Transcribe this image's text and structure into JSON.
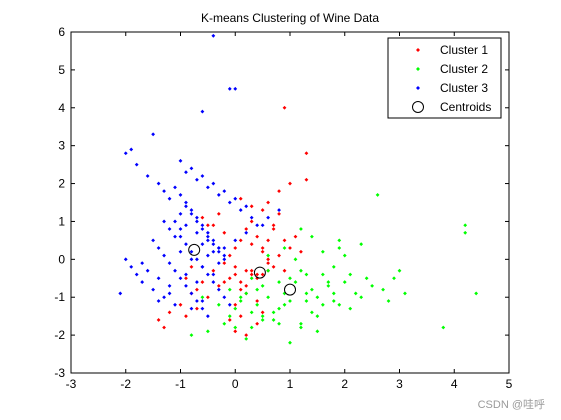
{
  "watermark": "CSDN @哇呼",
  "chart_data": {
    "type": "scatter",
    "title": "K-means Clustering of Wine Data",
    "xlabel": "",
    "ylabel": "",
    "xlim": [
      -3,
      5
    ],
    "ylim": [
      -3,
      6
    ],
    "xticks": [
      "-3",
      "-2",
      "-1",
      "0",
      "1",
      "2",
      "3",
      "4",
      "5"
    ],
    "yticks": [
      "-3",
      "-2",
      "-1",
      "0",
      "1",
      "2",
      "3",
      "4",
      "5",
      "6"
    ],
    "grid": false,
    "legend_position": "top-right",
    "colors": {
      "cluster1": "#ff0000",
      "cluster2": "#00ff00",
      "cluster3": "#0000ff",
      "centroid": "#000000"
    },
    "series": [
      {
        "name": "Cluster 1",
        "marker": "dot",
        "x": [
          0.9,
          1.3,
          1.3,
          1.0,
          0.8,
          0.6,
          0.5,
          0.3,
          0.2,
          0.1,
          0.0,
          -0.1,
          -0.2,
          -0.4,
          -0.6,
          -0.8,
          -1.0,
          -1.4,
          -1.3,
          -1.2,
          0.4,
          0.2,
          0.0,
          -0.1,
          -0.3,
          -0.5,
          -0.7,
          0.3,
          0.4,
          0.5,
          0.6,
          0.7,
          0.1,
          0.2,
          0.4,
          0.5,
          -0.2,
          -0.4,
          -0.6,
          0.9,
          1.0,
          0.8,
          0.6,
          0.3,
          0.1,
          -0.1,
          0.0,
          0.2,
          0.4,
          0.3,
          0.1,
          -0.3,
          -0.5,
          -0.9,
          0.7,
          0.8,
          0.5,
          0.3,
          0.0,
          -0.2,
          1.2,
          1.1,
          0.9,
          0.6,
          0.4,
          0.2,
          0.5,
          0.6,
          0.7,
          -0.7,
          -0.9,
          -0.8,
          0.0,
          0.1
        ],
        "y": [
          4.0,
          2.8,
          2.1,
          2.0,
          1.8,
          1.5,
          1.3,
          1.0,
          0.8,
          0.5,
          0.3,
          0.1,
          -0.1,
          -0.3,
          -0.6,
          -0.9,
          -1.2,
          -1.6,
          -1.8,
          -1.4,
          -0.4,
          -0.3,
          -0.2,
          -0.5,
          -0.7,
          -1.0,
          -1.3,
          0.4,
          0.6,
          0.2,
          0.0,
          -0.2,
          -0.6,
          -0.9,
          -1.1,
          -1.4,
          0.7,
          0.9,
          1.1,
          0.5,
          0.3,
          0.1,
          -0.1,
          -0.4,
          -0.8,
          -1.6,
          -1.9,
          -2.0,
          -1.7,
          1.4,
          1.6,
          1.2,
          0.9,
          -0.5,
          0.9,
          1.2,
          -0.4,
          -0.3,
          -0.4,
          -0.6,
          0.2,
          0.6,
          -0.3,
          -0.3,
          -0.5,
          -0.7,
          0.3,
          0.5,
          0.8,
          -0.8,
          -1.5,
          -0.2,
          -1.2,
          -1.5
        ]
      },
      {
        "name": "Cluster 2",
        "marker": "dot",
        "x": [
          2.6,
          4.2,
          4.2,
          4.4,
          3.8,
          3.1,
          2.9,
          2.8,
          2.5,
          2.3,
          2.1,
          2.0,
          1.9,
          1.8,
          1.7,
          1.6,
          1.5,
          1.4,
          1.3,
          1.2,
          1.1,
          1.0,
          0.9,
          0.8,
          0.7,
          0.6,
          0.5,
          0.4,
          0.3,
          0.2,
          0.1,
          0.0,
          -0.1,
          -0.2,
          -0.3,
          -0.5,
          -0.6,
          -0.8,
          2.0,
          1.8,
          1.6,
          1.4,
          1.2,
          1.0,
          0.8,
          0.6,
          0.4,
          2.2,
          2.4,
          1.9,
          1.7,
          1.5,
          1.3,
          1.1,
          0.9,
          0.7,
          0.5,
          0.3,
          0.1,
          -0.1,
          1.6,
          1.9,
          2.3,
          1.4,
          1.2,
          0.9,
          0.6,
          0.3,
          2.7,
          3.0,
          1.0,
          1.2,
          1.5,
          0.8,
          0.5,
          0.2,
          0.0,
          2.1,
          1.8,
          1.3
        ],
        "y": [
          1.7,
          0.9,
          0.7,
          -0.9,
          -1.8,
          -0.9,
          -0.5,
          -1.1,
          -0.7,
          -1.0,
          -0.4,
          0.1,
          0.3,
          -0.2,
          -0.6,
          -1.2,
          -1.5,
          -0.8,
          -1.1,
          -0.3,
          0.0,
          -0.5,
          -0.9,
          -1.3,
          -1.6,
          -1.0,
          -0.7,
          -1.2,
          -1.4,
          -0.9,
          -1.1,
          -1.3,
          -1.5,
          -1.7,
          -1.2,
          -1.9,
          -1.0,
          -2.0,
          -0.6,
          -0.9,
          -0.4,
          -1.4,
          -1.7,
          -1.1,
          -0.6,
          -0.3,
          -0.8,
          -0.9,
          -0.5,
          -1.2,
          -0.7,
          -1.0,
          -0.4,
          -0.6,
          -1.2,
          -1.4,
          -1.6,
          -1.8,
          -1.0,
          -0.8,
          0.2,
          0.5,
          0.4,
          0.6,
          0.8,
          0.3,
          0.1,
          -0.5,
          -0.8,
          -0.3,
          -2.2,
          -1.8,
          -1.9,
          -1.7,
          -1.5,
          -2.1,
          -1.8,
          -1.3,
          -1.1,
          -0.9
        ]
      },
      {
        "name": "Cluster 3",
        "marker": "dot",
        "x": [
          -0.4,
          -0.1,
          0.0,
          -0.6,
          -1.5,
          -1.9,
          -2.0,
          -2.1,
          -1.8,
          -1.6,
          -1.4,
          -1.3,
          -1.2,
          -1.1,
          -1.0,
          -0.9,
          -0.8,
          -0.7,
          -0.6,
          -0.5,
          -0.4,
          -0.3,
          -0.2,
          -1.0,
          -0.9,
          -0.8,
          -0.7,
          -0.6,
          -0.5,
          -0.4,
          -0.3,
          -0.2,
          -0.1,
          -1.2,
          -1.1,
          -1.0,
          -0.9,
          -0.8,
          -0.7,
          -0.6,
          -0.5,
          -0.4,
          -0.3,
          -1.5,
          -1.4,
          -1.3,
          -1.2,
          -1.1,
          -1.0,
          -0.9,
          -0.8,
          -0.7,
          -0.6,
          -0.5,
          -1.7,
          -1.6,
          -1.4,
          -1.2,
          -1.0,
          -0.8,
          -0.6,
          -0.4,
          -0.2,
          0.0,
          0.2,
          0.4,
          0.6,
          0.8,
          -1.3,
          -1.1,
          -0.9,
          -0.7,
          -0.5,
          -0.3,
          -2.0,
          -1.9,
          -1.8,
          -1.7,
          -1.5,
          -1.3,
          -1.1,
          -0.9,
          -0.7,
          -0.5,
          -0.3,
          -0.1,
          0.1,
          0.3,
          0.5,
          -1.0,
          -0.8,
          -0.6,
          -0.4,
          -0.2,
          0.0,
          0.2,
          -0.9,
          -0.7,
          -0.5,
          -0.3,
          -1.2,
          -0.8,
          -0.6,
          -1.4,
          -0.2,
          -0.4,
          -0.6,
          -1.0
        ],
        "y": [
          5.9,
          4.5,
          4.5,
          3.9,
          3.3,
          2.9,
          2.8,
          -0.9,
          2.5,
          2.2,
          2.0,
          1.8,
          1.6,
          1.9,
          1.7,
          1.5,
          1.3,
          1.1,
          0.9,
          0.7,
          0.5,
          0.3,
          0.1,
          0.6,
          0.4,
          0.2,
          0.0,
          -0.2,
          -0.4,
          -0.6,
          -0.8,
          -1.0,
          -1.2,
          0.8,
          1.0,
          1.2,
          1.4,
          1.2,
          1.0,
          0.8,
          0.6,
          0.4,
          0.2,
          0.5,
          0.3,
          0.1,
          -0.1,
          -0.3,
          -0.5,
          -0.7,
          -0.9,
          -1.1,
          -1.3,
          -1.5,
          -0.1,
          -0.3,
          -0.5,
          -0.7,
          0.2,
          0.0,
          -0.2,
          -0.4,
          0.3,
          0.5,
          0.7,
          0.9,
          1.1,
          1.3,
          1.0,
          0.6,
          0.9,
          0.7,
          0.5,
          0.3,
          0.0,
          -0.2,
          -0.4,
          -0.6,
          -0.8,
          -1.0,
          -1.2,
          2.3,
          2.1,
          1.9,
          1.7,
          1.5,
          1.3,
          1.1,
          0.9,
          2.6,
          2.4,
          2.2,
          2.0,
          1.8,
          1.6,
          1.4,
          -0.4,
          -0.6,
          0.1,
          -0.1,
          -0.9,
          -1.3,
          -1.1,
          -1.1,
          0.0,
          0.2,
          0.4,
          0.8
        ]
      },
      {
        "name": "Centroids",
        "marker": "circle",
        "x": [
          0.45,
          1.0,
          -0.75
        ],
        "y": [
          -0.35,
          -0.8,
          0.25
        ]
      }
    ]
  }
}
